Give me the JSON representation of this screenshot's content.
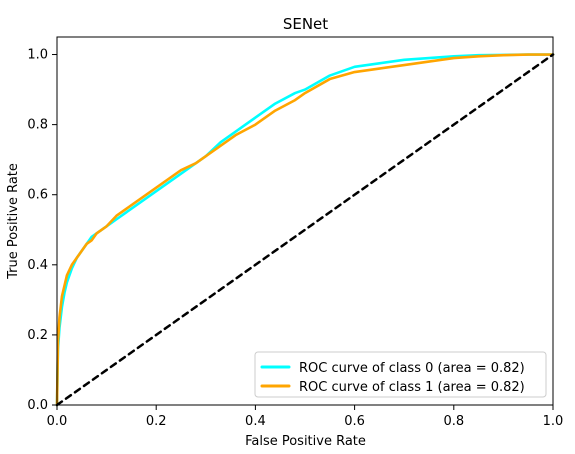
{
  "chart_data": {
    "type": "line",
    "title": "SENet",
    "xlabel": "False Positive Rate",
    "ylabel": "True Positive Rate",
    "xlim": [
      0.0,
      1.0
    ],
    "ylim": [
      0.0,
      1.05
    ],
    "grid": false,
    "legend_position": "lower-right",
    "x_ticks": [
      0.0,
      0.2,
      0.4,
      0.6,
      0.8,
      1.0
    ],
    "y_ticks": [
      0.0,
      0.2,
      0.4,
      0.6,
      0.8,
      1.0
    ],
    "x_tick_labels": [
      "0.0",
      "0.2",
      "0.4",
      "0.6",
      "0.8",
      "1.0"
    ],
    "y_tick_labels": [
      "0.0",
      "0.2",
      "0.4",
      "0.6",
      "0.8",
      "1.0"
    ],
    "series": [
      {
        "name": "ROC curve of class 0 (area = 0.82)",
        "color": "#00FFFF",
        "line_style": "solid",
        "points": [
          [
            0.0,
            0.0
          ],
          [
            0.002,
            0.16
          ],
          [
            0.005,
            0.22
          ],
          [
            0.01,
            0.28
          ],
          [
            0.015,
            0.32
          ],
          [
            0.02,
            0.35
          ],
          [
            0.03,
            0.39
          ],
          [
            0.04,
            0.42
          ],
          [
            0.05,
            0.44
          ],
          [
            0.06,
            0.46
          ],
          [
            0.07,
            0.48
          ],
          [
            0.08,
            0.49
          ],
          [
            0.1,
            0.51
          ],
          [
            0.12,
            0.53
          ],
          [
            0.15,
            0.56
          ],
          [
            0.18,
            0.59
          ],
          [
            0.2,
            0.61
          ],
          [
            0.22,
            0.63
          ],
          [
            0.25,
            0.66
          ],
          [
            0.28,
            0.69
          ],
          [
            0.3,
            0.71
          ],
          [
            0.33,
            0.75
          ],
          [
            0.36,
            0.78
          ],
          [
            0.4,
            0.82
          ],
          [
            0.44,
            0.86
          ],
          [
            0.48,
            0.89
          ],
          [
            0.5,
            0.9
          ],
          [
            0.55,
            0.94
          ],
          [
            0.6,
            0.965
          ],
          [
            0.65,
            0.975
          ],
          [
            0.7,
            0.985
          ],
          [
            0.75,
            0.99
          ],
          [
            0.8,
            0.995
          ],
          [
            0.85,
            0.998
          ],
          [
            0.9,
            0.999
          ],
          [
            0.95,
            1.0
          ],
          [
            1.0,
            1.0
          ]
        ]
      },
      {
        "name": "ROC curve of class 1 (area = 0.82)",
        "color": "#FFA500",
        "line_style": "solid",
        "points": [
          [
            0.0,
            0.0
          ],
          [
            0.002,
            0.18
          ],
          [
            0.005,
            0.25
          ],
          [
            0.01,
            0.31
          ],
          [
            0.015,
            0.34
          ],
          [
            0.02,
            0.37
          ],
          [
            0.03,
            0.4
          ],
          [
            0.04,
            0.42
          ],
          [
            0.05,
            0.44
          ],
          [
            0.06,
            0.46
          ],
          [
            0.07,
            0.47
          ],
          [
            0.08,
            0.49
          ],
          [
            0.1,
            0.51
          ],
          [
            0.12,
            0.54
          ],
          [
            0.15,
            0.57
          ],
          [
            0.18,
            0.6
          ],
          [
            0.2,
            0.62
          ],
          [
            0.22,
            0.64
          ],
          [
            0.25,
            0.67
          ],
          [
            0.28,
            0.69
          ],
          [
            0.3,
            0.71
          ],
          [
            0.33,
            0.74
          ],
          [
            0.36,
            0.77
          ],
          [
            0.4,
            0.8
          ],
          [
            0.44,
            0.84
          ],
          [
            0.48,
            0.87
          ],
          [
            0.5,
            0.89
          ],
          [
            0.55,
            0.93
          ],
          [
            0.6,
            0.95
          ],
          [
            0.65,
            0.96
          ],
          [
            0.7,
            0.97
          ],
          [
            0.75,
            0.98
          ],
          [
            0.8,
            0.99
          ],
          [
            0.85,
            0.995
          ],
          [
            0.9,
            0.998
          ],
          [
            0.95,
            1.0
          ],
          [
            1.0,
            1.0
          ]
        ]
      },
      {
        "color": "#000000",
        "line_style": "dashed",
        "points": [
          [
            0.0,
            0.0
          ],
          [
            1.0,
            1.0
          ]
        ]
      }
    ]
  }
}
